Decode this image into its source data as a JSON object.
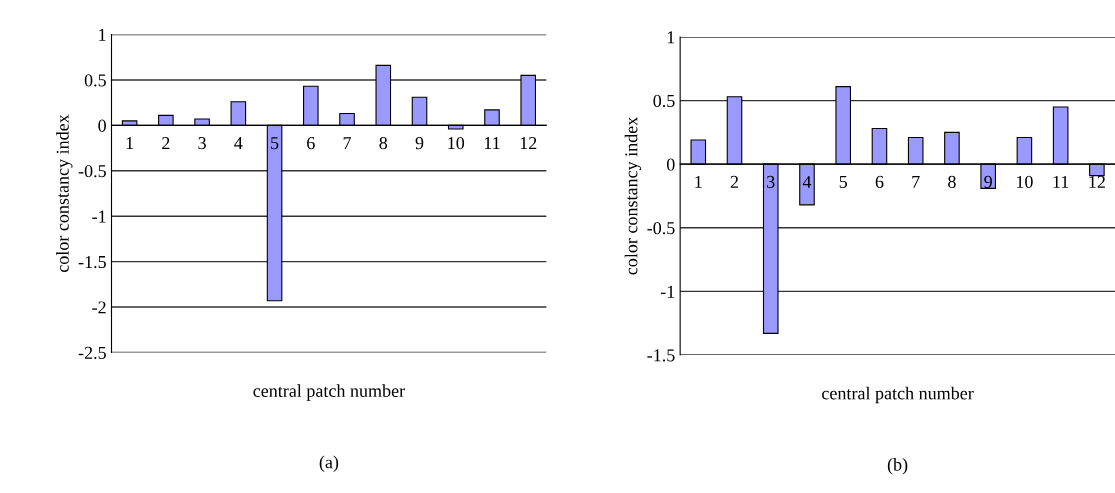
{
  "chart_data": [
    {
      "type": "bar",
      "xlabel": "central patch number",
      "ylabel": "color constancy index",
      "categories": [
        "1",
        "2",
        "3",
        "4",
        "5",
        "6",
        "7",
        "8",
        "9",
        "10",
        "11",
        "12"
      ],
      "series": [
        {
          "color": "#9999ff",
          "values": [
            0.05,
            0.11,
            0.07,
            0.26,
            -1.93,
            0.43,
            0.13,
            0.66,
            0.31,
            -0.04,
            0.17,
            0.55
          ]
        }
      ],
      "ylim": [
        -2.5,
        1
      ],
      "yticks": [
        -2.5,
        -2,
        -1.5,
        -1,
        -0.5,
        0,
        0.5,
        1
      ],
      "grid": "y",
      "annotations": [
        "(a)"
      ]
    },
    {
      "type": "bar",
      "xlabel": "central patch number",
      "ylabel": "color constancy index",
      "categories": [
        "1",
        "2",
        "3",
        "4",
        "5",
        "6",
        "7",
        "8",
        "9",
        "10",
        "11",
        "12"
      ],
      "series": [
        {
          "color": "#9999ff",
          "values": [
            0.19,
            0.53,
            -1.33,
            -0.32,
            0.61,
            0.28,
            0.21,
            0.25,
            -0.19,
            0.21,
            0.45,
            -0.09
          ]
        }
      ],
      "ylim": [
        -1.5,
        1
      ],
      "yticks": [
        -1.5,
        -1,
        -0.5,
        0,
        0.5,
        1
      ],
      "grid": "y",
      "annotations": [
        "(b)"
      ]
    }
  ]
}
